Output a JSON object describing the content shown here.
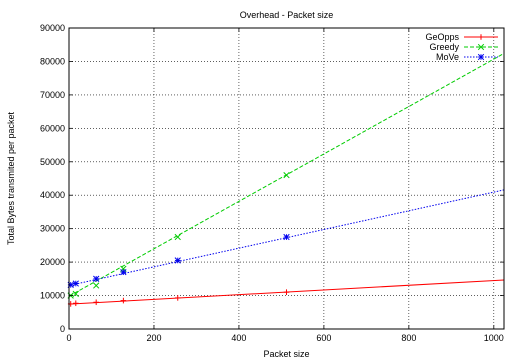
{
  "chart_data": {
    "type": "line",
    "title": "Overhead - Packet size",
    "xlabel": "Packet size",
    "ylabel": "Total Bytes transmited per packet",
    "xlim": [
      0,
      1024
    ],
    "ylim": [
      0,
      90000
    ],
    "xticks": [
      0,
      200,
      400,
      600,
      800,
      1000
    ],
    "yticks": [
      0,
      10000,
      20000,
      30000,
      40000,
      50000,
      60000,
      70000,
      80000,
      90000
    ],
    "grid": true,
    "legend_position": "top-right",
    "series": [
      {
        "name": "GeOpps",
        "color": "#ff0000",
        "marker": "plus",
        "dash": "solid",
        "x": [
          4,
          16,
          64,
          128,
          256,
          512
        ],
        "y": [
          7500,
          7700,
          8000,
          8500,
          9300,
          11000
        ],
        "fit": [
          [
            0,
            7450
          ],
          [
            1024,
            14650
          ]
        ]
      },
      {
        "name": "Greedy",
        "color": "#00cc00",
        "marker": "x",
        "dash": "dashed",
        "x": [
          4,
          16,
          64,
          128,
          256,
          512
        ],
        "y": [
          10000,
          10500,
          13000,
          18000,
          27500,
          46000
        ],
        "fit": [
          [
            0,
            9800
          ],
          [
            1024,
            82400
          ]
        ]
      },
      {
        "name": "MoVe",
        "color": "#0000ee",
        "marker": "asterisk",
        "dash": "dotted",
        "x": [
          4,
          16,
          64,
          128,
          256,
          512
        ],
        "y": [
          13200,
          13600,
          15000,
          17000,
          20500,
          27500
        ],
        "fit": [
          [
            0,
            13000
          ],
          [
            1024,
            41600
          ]
        ]
      }
    ]
  }
}
